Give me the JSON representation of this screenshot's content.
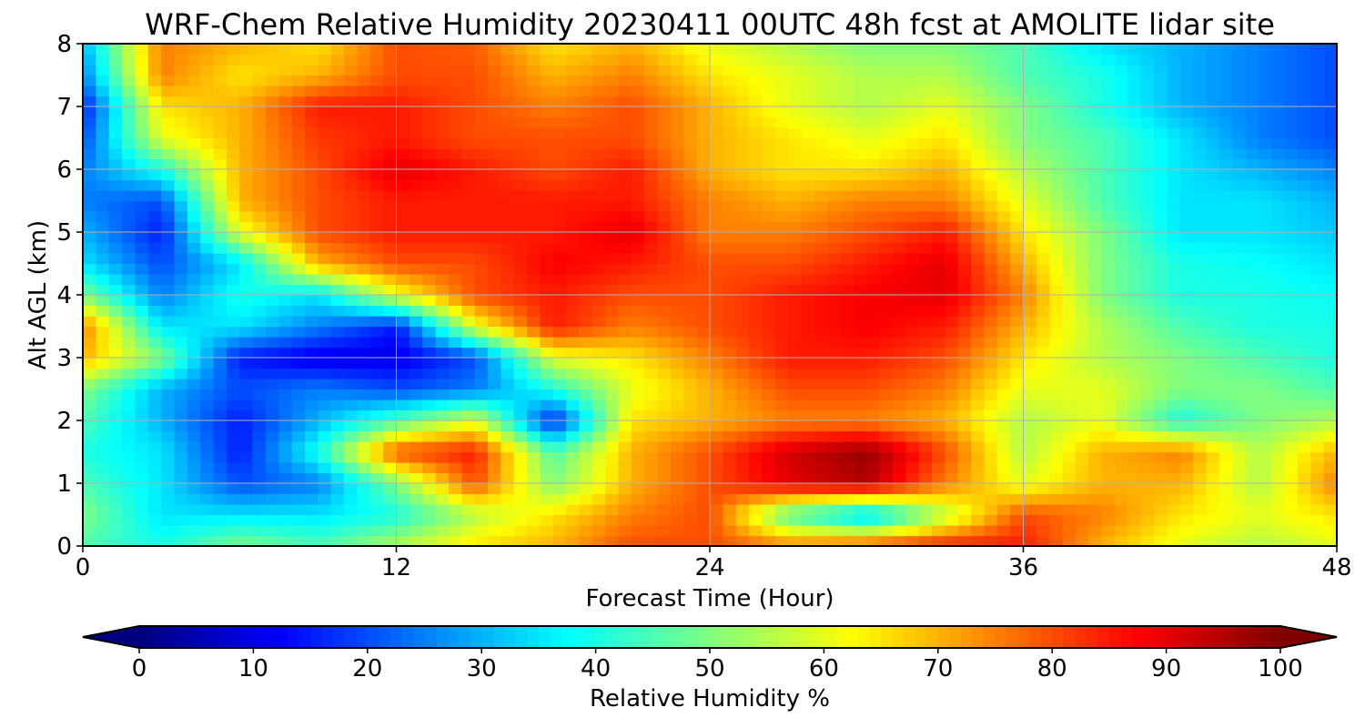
{
  "chart_data": {
    "type": "heatmap",
    "title": "WRF-Chem Relative Humidity 20230411 00UTC 48h fcst at AMOLITE lidar site",
    "xlabel": "Forecast Time (Hour)",
    "ylabel": "Alt AGL (km)",
    "xlim": [
      0,
      48
    ],
    "ylim": [
      0,
      8
    ],
    "xticks": [
      0,
      12,
      24,
      36,
      48
    ],
    "yticks": [
      0,
      1,
      2,
      3,
      4,
      5,
      6,
      7,
      8
    ],
    "grid": true,
    "colormap": "jet",
    "x": [
      0,
      3,
      6,
      9,
      12,
      15,
      18,
      21,
      24,
      27,
      30,
      33,
      36,
      39,
      42,
      45,
      48
    ],
    "y": [
      0,
      0.5,
      1,
      1.5,
      2,
      2.5,
      3,
      3.5,
      4,
      4.5,
      5,
      5.5,
      6,
      6.5,
      7,
      7.5,
      8
    ],
    "z": [
      [
        45,
        40,
        50,
        45,
        55,
        65,
        70,
        80,
        80,
        75,
        80,
        85,
        85,
        70,
        60,
        55,
        60
      ],
      [
        50,
        35,
        35,
        35,
        40,
        55,
        65,
        75,
        80,
        45,
        30,
        55,
        80,
        75,
        65,
        60,
        65
      ],
      [
        45,
        35,
        20,
        25,
        50,
        80,
        50,
        70,
        80,
        90,
        95,
        75,
        60,
        70,
        70,
        55,
        75
      ],
      [
        40,
        35,
        15,
        40,
        80,
        85,
        45,
        70,
        80,
        92,
        98,
        80,
        55,
        70,
        75,
        55,
        70
      ],
      [
        45,
        30,
        15,
        30,
        45,
        60,
        15,
        65,
        70,
        75,
        75,
        70,
        55,
        60,
        40,
        50,
        55
      ],
      [
        50,
        30,
        20,
        25,
        20,
        25,
        40,
        60,
        70,
        80,
        80,
        75,
        60,
        60,
        50,
        50,
        45
      ],
      [
        70,
        50,
        15,
        10,
        10,
        20,
        60,
        65,
        75,
        85,
        85,
        80,
        65,
        55,
        50,
        45,
        40
      ],
      [
        75,
        35,
        35,
        25,
        15,
        60,
        85,
        75,
        80,
        85,
        88,
        85,
        70,
        55,
        45,
        40,
        40
      ],
      [
        50,
        25,
        40,
        35,
        60,
        80,
        85,
        80,
        80,
        85,
        88,
        90,
        75,
        50,
        40,
        40,
        38
      ],
      [
        35,
        20,
        35,
        70,
        80,
        80,
        88,
        85,
        80,
        80,
        85,
        90,
        70,
        50,
        40,
        38,
        35
      ],
      [
        30,
        15,
        60,
        80,
        85,
        85,
        85,
        90,
        75,
        75,
        80,
        85,
        65,
        50,
        35,
        35,
        32
      ],
      [
        25,
        20,
        70,
        80,
        85,
        85,
        85,
        85,
        75,
        70,
        75,
        75,
        60,
        45,
        35,
        35,
        30
      ],
      [
        25,
        40,
        70,
        80,
        90,
        85,
        80,
        85,
        70,
        65,
        65,
        70,
        55,
        45,
        35,
        30,
        25
      ],
      [
        20,
        60,
        70,
        82,
        85,
        80,
        80,
        80,
        70,
        65,
        60,
        65,
        50,
        45,
        35,
        25,
        20
      ],
      [
        15,
        65,
        70,
        85,
        85,
        80,
        75,
        80,
        70,
        60,
        55,
        60,
        50,
        40,
        30,
        25,
        20
      ],
      [
        25,
        75,
        65,
        70,
        80,
        80,
        70,
        75,
        65,
        60,
        55,
        55,
        45,
        40,
        30,
        25,
        20
      ],
      [
        30,
        75,
        70,
        65,
        80,
        78,
        65,
        70,
        60,
        55,
        50,
        50,
        45,
        35,
        30,
        25,
        20
      ]
    ],
    "colorbar": {
      "label": "Relative Humidity %",
      "ticks": [
        0,
        10,
        20,
        30,
        40,
        50,
        60,
        70,
        80,
        90,
        100
      ],
      "min": 0,
      "max": 100,
      "extend": "both"
    }
  }
}
